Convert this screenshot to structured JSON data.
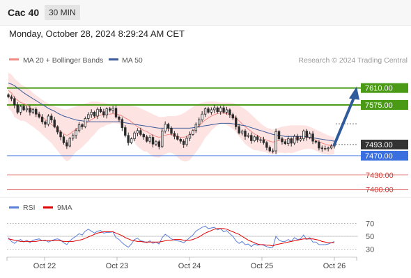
{
  "header": {
    "title": "Cac 40",
    "timeframe": "30 MIN",
    "datetime": "Monday, October 28, 2024 8:29:24 AM CET"
  },
  "legend": {
    "ma20": "MA 20 + Bollinger Bands",
    "ma50": "MA 50",
    "credit": "Research © 2024 Trading Central",
    "rsi": "RSI",
    "rsi_ma": "9MA"
  },
  "colors": {
    "candle": "#2a2a2a",
    "bollinger_fill": "#fde3e2",
    "ma20": "#f28a86",
    "ma50": "#3b5a99",
    "resistance": "#4a9a16",
    "support": "#3a6fe0",
    "weak_level": "#e07a76",
    "current_tag": "#333333",
    "arrow": "#2f5b9c",
    "rsi": "#5a7fd8",
    "rsi_ma": "#e00000"
  },
  "chart_data": [
    {
      "type": "candlestick",
      "title": "",
      "x_ticks": [
        "Oct 22",
        "Oct 23",
        "Oct 24",
        "Oct 25",
        "Oct 26"
      ],
      "y_ticks": [
        7400,
        7430,
        7470,
        7493,
        7575,
        7610
      ],
      "ylim": [
        7400,
        7640
      ],
      "levels": [
        {
          "value": 7610.0,
          "label": "7610.00",
          "kind": "resistance"
        },
        {
          "value": 7575.0,
          "label": "7575.00",
          "kind": "resistance"
        },
        {
          "value": 7493.0,
          "label": "7493.00",
          "kind": "current"
        },
        {
          "value": 7470.0,
          "label": "7470.00",
          "kind": "support"
        },
        {
          "value": 7430.0,
          "label": "7430.00",
          "kind": "weak_support"
        },
        {
          "value": 7400.0,
          "label": "7400.00",
          "kind": "weak_support"
        }
      ],
      "close_series": [
        7592,
        7588,
        7575,
        7560,
        7572,
        7565,
        7568,
        7560,
        7566,
        7556,
        7550,
        7540,
        7535,
        7552,
        7544,
        7530,
        7519,
        7509,
        7497,
        7490,
        7506,
        7512,
        7522,
        7534,
        7530,
        7547,
        7555,
        7560,
        7552,
        7566,
        7561,
        7554,
        7567,
        7564,
        7568,
        7550,
        7545,
        7528,
        7512,
        7497,
        7505,
        7517,
        7522,
        7514,
        7509,
        7500,
        7508,
        7494,
        7499,
        7489,
        7521,
        7535,
        7527,
        7516,
        7510,
        7504,
        7500,
        7493,
        7506,
        7514,
        7522,
        7535,
        7544,
        7556,
        7567,
        7560,
        7565,
        7569,
        7561,
        7569,
        7560,
        7565,
        7555,
        7548,
        7530,
        7517,
        7521,
        7510,
        7512,
        7501,
        7509,
        7503,
        7503,
        7497,
        7487,
        7480,
        7480,
        7520,
        7505,
        7499,
        7495,
        7505,
        7496,
        7510,
        7502,
        7505,
        7521,
        7508,
        7515,
        7500,
        7498,
        7486,
        7485,
        7485,
        7486,
        7490,
        7493
      ],
      "ma20": [
        7605,
        7600,
        7590,
        7585,
        7580,
        7578,
        7575,
        7570,
        7565,
        7560,
        7555,
        7550,
        7545,
        7540,
        7535,
        7530,
        7525,
        7520,
        7515,
        7512,
        7515,
        7520,
        7525,
        7528,
        7532,
        7536,
        7540,
        7545,
        7548,
        7552,
        7554,
        7555,
        7556,
        7556,
        7557,
        7556,
        7555,
        7552,
        7548,
        7545,
        7540,
        7535,
        7530,
        7526,
        7522,
        7520,
        7516,
        7512,
        7510,
        7508,
        7510,
        7512,
        7514,
        7514,
        7512,
        7510,
        7508,
        7508,
        7510,
        7514,
        7520,
        7526,
        7532,
        7538,
        7544,
        7548,
        7552,
        7555,
        7557,
        7558,
        7558,
        7557,
        7555,
        7552,
        7548,
        7542,
        7536,
        7530,
        7525,
        7520,
        7515,
        7512,
        7508,
        7505,
        7502,
        7500,
        7498,
        7500,
        7502,
        7503,
        7503,
        7504,
        7504,
        7505,
        7506,
        7507,
        7508,
        7508,
        7507,
        7505,
        7502,
        7499,
        7496,
        7494,
        7492,
        7491,
        7491
      ],
      "bb_upper": [
        7642,
        7638,
        7630,
        7624,
        7618,
        7614,
        7611,
        7606,
        7600,
        7595,
        7590,
        7586,
        7582,
        7578,
        7574,
        7572,
        7570,
        7568,
        7566,
        7566,
        7568,
        7570,
        7572,
        7574,
        7576,
        7578,
        7580,
        7582,
        7582,
        7582,
        7580,
        7580,
        7578,
        7577,
        7576,
        7575,
        7574,
        7574,
        7574,
        7574,
        7573,
        7572,
        7571,
        7568,
        7565,
        7562,
        7559,
        7556,
        7553,
        7550,
        7550,
        7551,
        7552,
        7552,
        7552,
        7553,
        7555,
        7558,
        7562,
        7567,
        7571,
        7575,
        7578,
        7580,
        7581,
        7582,
        7582,
        7582,
        7581,
        7580,
        7580,
        7580,
        7580,
        7579,
        7577,
        7574,
        7570,
        7566,
        7561,
        7555,
        7549,
        7543,
        7537,
        7532,
        7528,
        7526,
        7524,
        7526,
        7528,
        7530,
        7531,
        7532,
        7533,
        7533,
        7533,
        7533,
        7533,
        7532,
        7530,
        7527,
        7524,
        7521,
        7518,
        7515,
        7512,
        7510,
        7509
      ],
      "bb_lower": [
        7568,
        7562,
        7550,
        7546,
        7542,
        7542,
        7539,
        7534,
        7530,
        7525,
        7520,
        7514,
        7508,
        7502,
        7496,
        7488,
        7480,
        7472,
        7464,
        7458,
        7462,
        7470,
        7478,
        7482,
        7488,
        7494,
        7500,
        7508,
        7514,
        7522,
        7528,
        7530,
        7534,
        7535,
        7538,
        7537,
        7536,
        7530,
        7522,
        7516,
        7507,
        7498,
        7489,
        7484,
        7479,
        7478,
        7473,
        7468,
        7467,
        7466,
        7470,
        7473,
        7476,
        7476,
        7472,
        7467,
        7461,
        7458,
        7458,
        7461,
        7469,
        7477,
        7486,
        7496,
        7507,
        7514,
        7522,
        7528,
        7533,
        7536,
        7536,
        7534,
        7530,
        7525,
        7519,
        7510,
        7502,
        7494,
        7489,
        7485,
        7481,
        7481,
        7479,
        7478,
        7476,
        7474,
        7472,
        7474,
        7476,
        7476,
        7475,
        7476,
        7475,
        7477,
        7479,
        7481,
        7483,
        7484,
        7484,
        7483,
        7480,
        7477,
        7474,
        7473,
        7472,
        7472,
        7473
      ],
      "ma50": [
        7620,
        7618,
        7615,
        7610,
        7605,
        7600,
        7596,
        7592,
        7588,
        7584,
        7580,
        7576,
        7572,
        7568,
        7565,
        7562,
        7558,
        7555,
        7552,
        7550,
        7548,
        7546,
        7544,
        7543,
        7542,
        7541,
        7540,
        7540,
        7540,
        7540,
        7540,
        7540,
        7540,
        7540,
        7540,
        7540,
        7540,
        7539,
        7538,
        7537,
        7536,
        7535,
        7534,
        7533,
        7532,
        7531,
        7530,
        7529,
        7528,
        7527,
        7527,
        7527,
        7527,
        7527,
        7527,
        7527,
        7527,
        7527,
        7527,
        7527,
        7528,
        7529,
        7530,
        7531,
        7532,
        7533,
        7534,
        7535,
        7536,
        7537,
        7537,
        7537,
        7537,
        7536,
        7535,
        7534,
        7533,
        7532,
        7530,
        7528,
        7526,
        7524,
        7522,
        7520,
        7518,
        7516,
        7514,
        7513,
        7512,
        7511,
        7510,
        7510,
        7510,
        7510,
        7510,
        7510,
        7510,
        7509,
        7508,
        7507,
        7506,
        7505,
        7504,
        7503,
        7502,
        7501,
        7500
      ]
    },
    {
      "type": "line",
      "title": "",
      "y_ticks": [
        30,
        50,
        70
      ],
      "ylim": [
        20,
        80
      ],
      "series": [
        {
          "name": "RSI",
          "values": [
            48,
            42,
            39,
            43,
            45,
            41,
            44,
            40,
            44,
            45,
            46,
            43,
            44,
            41,
            43,
            45,
            46,
            44,
            40,
            37,
            43,
            47,
            50,
            54,
            52,
            58,
            61,
            58,
            55,
            58,
            59,
            55,
            56,
            56,
            57,
            48,
            45,
            40,
            36,
            33,
            38,
            45,
            47,
            43,
            42,
            40,
            43,
            39,
            41,
            38,
            48,
            53,
            50,
            46,
            44,
            43,
            42,
            40,
            44,
            48,
            52,
            58,
            61,
            64,
            66,
            62,
            63,
            64,
            60,
            62,
            57,
            59,
            54,
            50,
            43,
            39,
            42,
            37,
            38,
            34,
            38,
            36,
            37,
            36,
            34,
            32,
            33,
            50,
            44,
            42,
            42,
            45,
            42,
            48,
            45,
            46,
            52,
            45,
            48,
            41,
            41,
            37,
            37,
            37,
            38,
            40,
            42
          ]
        },
        {
          "name": "9MA",
          "values": [
            46,
            45,
            44,
            43,
            42,
            42,
            42,
            42,
            42,
            42,
            43,
            43,
            43,
            43,
            43,
            43,
            43,
            43,
            42,
            42,
            42,
            42,
            43,
            44,
            45,
            47,
            49,
            51,
            53,
            55,
            56,
            57,
            57,
            57,
            57,
            55,
            53,
            51,
            48,
            46,
            44,
            43,
            42,
            42,
            41,
            41,
            41,
            41,
            41,
            41,
            42,
            43,
            44,
            44,
            45,
            45,
            45,
            44,
            44,
            44,
            45,
            47,
            49,
            52,
            55,
            57,
            59,
            61,
            62,
            62,
            62,
            61,
            59,
            57,
            55,
            53,
            50,
            47,
            44,
            42,
            40,
            38,
            37,
            37,
            36,
            36,
            35,
            37,
            38,
            39,
            40,
            41,
            42,
            43,
            44,
            45,
            46,
            46,
            46,
            46,
            45,
            44,
            42,
            41,
            40,
            40,
            40
          ]
        }
      ]
    }
  ]
}
